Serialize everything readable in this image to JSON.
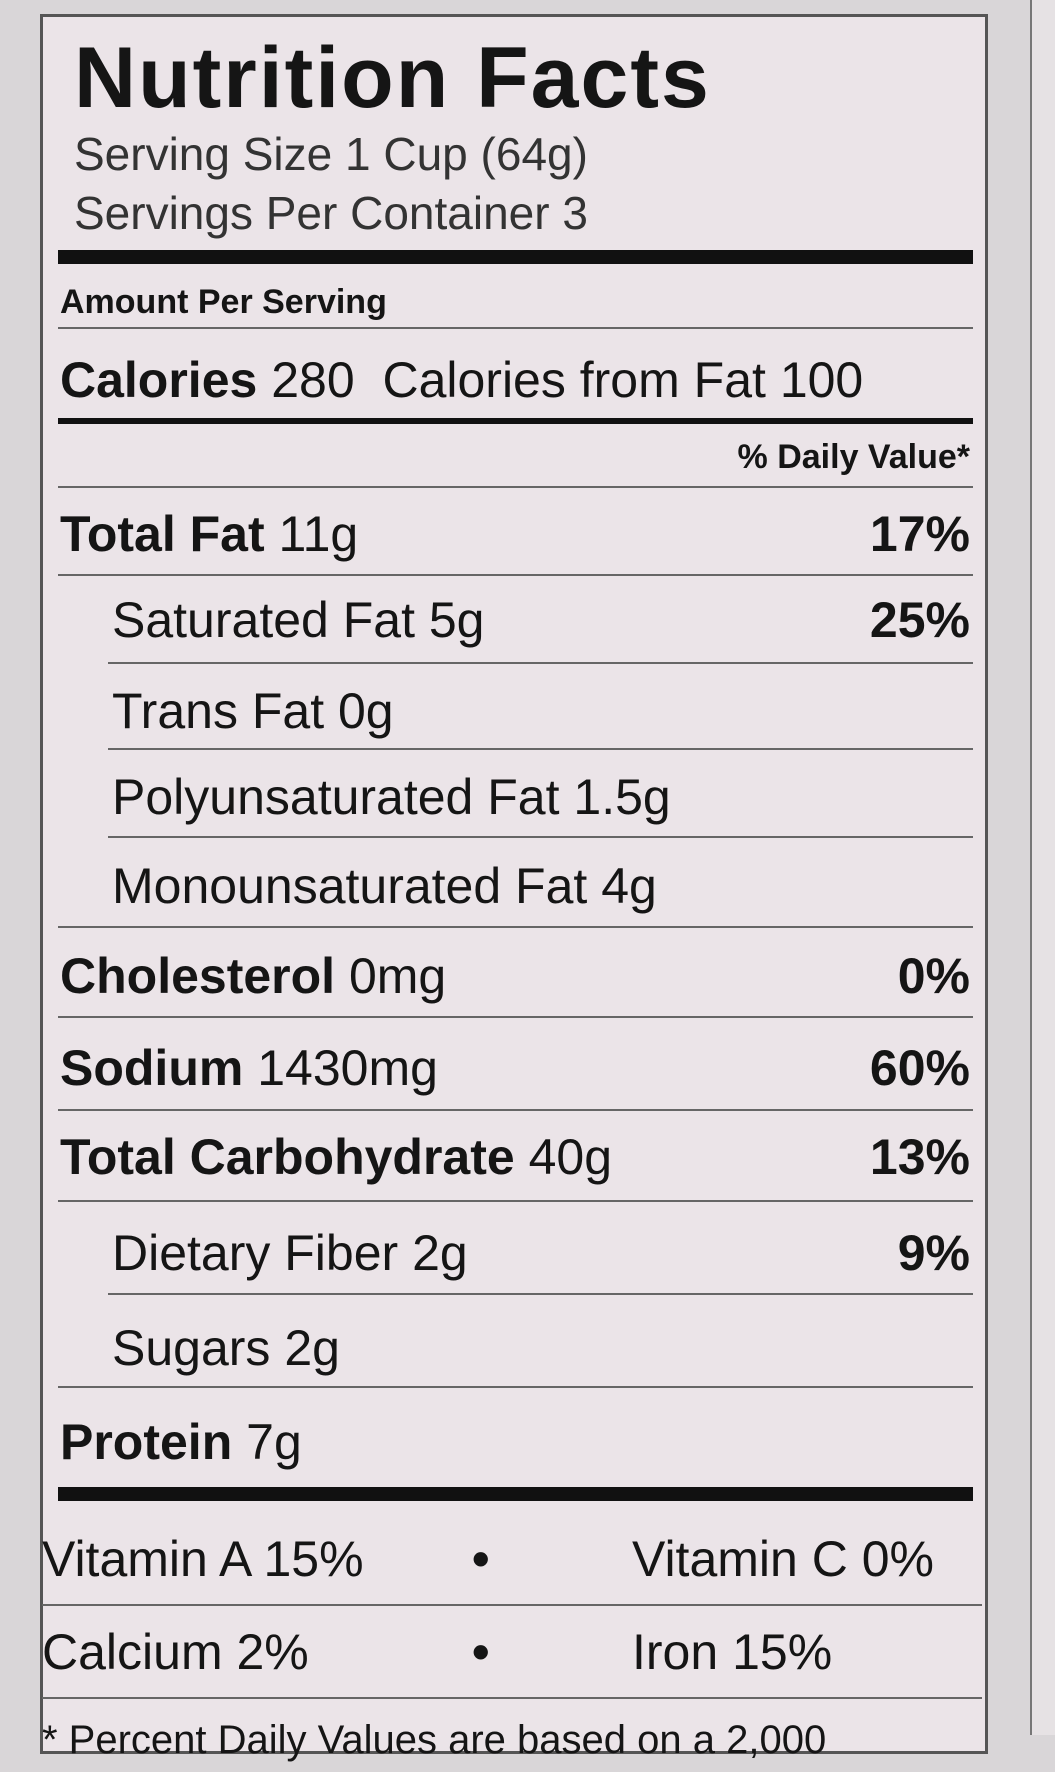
{
  "title": "Nutrition Facts",
  "serving_size": "Serving Size 1 Cup (64g)",
  "servings_per_container": "Servings Per Container 3",
  "amount_per_serving": "Amount Per Serving",
  "calories": {
    "label": "Calories",
    "value": "280",
    "from_fat_label": "Calories from Fat",
    "from_fat": "100"
  },
  "daily_value_header": "% Daily Value*",
  "nutrients": [
    {
      "name": "Total Fat",
      "amount": "11g",
      "dv": "17%"
    },
    {
      "name": "Saturated Fat",
      "amount": "5g",
      "dv": "25%"
    },
    {
      "name": "Trans Fat",
      "amount": "0g"
    },
    {
      "name": "Polyunsaturated Fat",
      "amount": "1.5g"
    },
    {
      "name": "Monounsaturated Fat",
      "amount": "4g"
    },
    {
      "name": "Cholesterol",
      "amount": "0mg",
      "dv": "0%"
    },
    {
      "name": "Sodium",
      "amount": "1430mg",
      "dv": "60%"
    },
    {
      "name": "Total Carbohydrate",
      "amount": "40g",
      "dv": "13%"
    },
    {
      "name": "Dietary Fiber",
      "amount": "2g",
      "dv": "9%"
    },
    {
      "name": "Sugars",
      "amount": "2g"
    },
    {
      "name": "Protein",
      "amount": "7g"
    }
  ],
  "vitamins": [
    {
      "name": "Vitamin A",
      "percent": "15%"
    },
    {
      "name": "Vitamin C",
      "percent": "0%"
    },
    {
      "name": "Calcium",
      "percent": "2%"
    },
    {
      "name": "Iron",
      "percent": "15%"
    }
  ],
  "footnote": "* Percent Daily Values are based on a 2,000"
}
